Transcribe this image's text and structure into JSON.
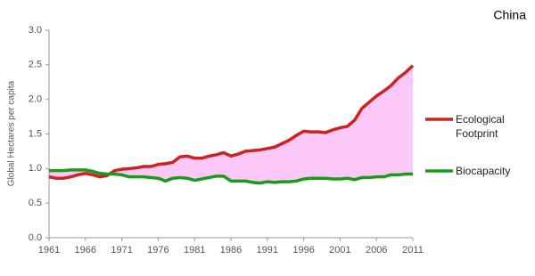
{
  "chart_data": {
    "type": "line",
    "title": "China",
    "ylabel": "Global Hectares per capita",
    "x": [
      1961,
      1962,
      1963,
      1964,
      1965,
      1966,
      1967,
      1968,
      1969,
      1970,
      1971,
      1972,
      1973,
      1974,
      1975,
      1976,
      1977,
      1978,
      1979,
      1980,
      1981,
      1982,
      1983,
      1984,
      1985,
      1986,
      1987,
      1988,
      1989,
      1990,
      1991,
      1992,
      1993,
      1994,
      1995,
      1996,
      1997,
      1998,
      1999,
      2000,
      2001,
      2002,
      2003,
      2004,
      2005,
      2006,
      2007,
      2008,
      2009,
      2010,
      2011
    ],
    "xlim": [
      1961,
      2011
    ],
    "xticks": [
      1961,
      1966,
      1971,
      1976,
      1981,
      1986,
      1991,
      1996,
      2001,
      2006,
      2011
    ],
    "ylim": [
      0,
      3
    ],
    "yticks": [
      {
        "value": 0,
        "label": "0.0"
      },
      0.5,
      {
        "value": 1,
        "label": "1.0"
      },
      1.5,
      {
        "value": 2,
        "label": "2.0"
      },
      2.5,
      {
        "value": 3,
        "label": "3.0"
      }
    ],
    "fill_between": true,
    "series": [
      {
        "name": "Ecological Footprint",
        "color": "#cc2222",
        "values": [
          0.88,
          0.86,
          0.86,
          0.88,
          0.91,
          0.93,
          0.91,
          0.88,
          0.9,
          0.97,
          0.99,
          1.0,
          1.01,
          1.03,
          1.03,
          1.06,
          1.07,
          1.09,
          1.17,
          1.18,
          1.15,
          1.15,
          1.18,
          1.2,
          1.23,
          1.18,
          1.21,
          1.25,
          1.26,
          1.27,
          1.29,
          1.31,
          1.36,
          1.41,
          1.48,
          1.54,
          1.53,
          1.53,
          1.52,
          1.56,
          1.59,
          1.61,
          1.7,
          1.87,
          1.96,
          2.05,
          2.12,
          2.2,
          2.31,
          2.39,
          2.49
        ]
      },
      {
        "name": "Biocapacity",
        "color": "#1a9a1a",
        "values": [
          0.97,
          0.97,
          0.97,
          0.98,
          0.98,
          0.98,
          0.96,
          0.93,
          0.92,
          0.92,
          0.91,
          0.88,
          0.88,
          0.88,
          0.87,
          0.86,
          0.82,
          0.86,
          0.87,
          0.86,
          0.83,
          0.85,
          0.87,
          0.89,
          0.89,
          0.82,
          0.82,
          0.82,
          0.8,
          0.79,
          0.81,
          0.8,
          0.81,
          0.81,
          0.82,
          0.85,
          0.86,
          0.86,
          0.86,
          0.85,
          0.85,
          0.86,
          0.84,
          0.87,
          0.87,
          0.88,
          0.88,
          0.91,
          0.91,
          0.92,
          0.92
        ]
      }
    ]
  }
}
